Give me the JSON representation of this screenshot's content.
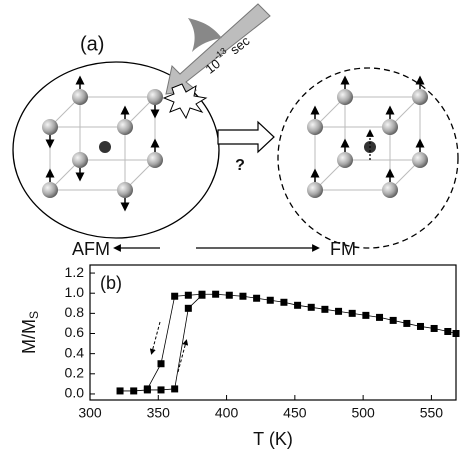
{
  "diagram": {
    "panel_label": "(a)",
    "pulse_label": {
      "base": "10",
      "exponent": "-13",
      "unit": "sec"
    },
    "question": "?",
    "left_label": "AFM",
    "right_label": "FM"
  },
  "chart_data": {
    "type": "line",
    "panel_label": "(b)",
    "xlabel": "T (K)",
    "ylabel": {
      "text": "M/M",
      "subscript": "S"
    },
    "xlim": [
      300,
      568
    ],
    "ylim": [
      -0.06,
      1.28
    ],
    "xticks": [
      300,
      350,
      400,
      450,
      500,
      550
    ],
    "yticks": [
      {
        "value": 0,
        "label": "0.0"
      },
      0.2,
      0.4,
      0.6,
      0.8,
      {
        "value": 1,
        "label": "1.0"
      },
      1.2
    ],
    "series": [
      {
        "color": "#000000",
        "x": [
          322,
          332,
          342,
          352,
          362,
          372,
          382
        ],
        "values": [
          0.03,
          0.03,
          0.04,
          0.04,
          0.05,
          0.85,
          0.98
        ]
      },
      {
        "color": "#000000",
        "x": [
          342,
          352,
          362,
          372,
          382,
          392,
          402,
          412,
          422,
          432,
          442,
          452,
          462,
          472,
          482,
          492,
          502,
          512,
          522,
          532,
          542,
          552,
          562,
          568
        ],
        "values": [
          0.05,
          0.3,
          0.97,
          0.98,
          0.99,
          0.99,
          0.98,
          0.97,
          0.95,
          0.93,
          0.91,
          0.88,
          0.86,
          0.84,
          0.82,
          0.8,
          0.78,
          0.76,
          0.73,
          0.7,
          0.67,
          0.65,
          0.62,
          0.6
        ]
      }
    ]
  }
}
